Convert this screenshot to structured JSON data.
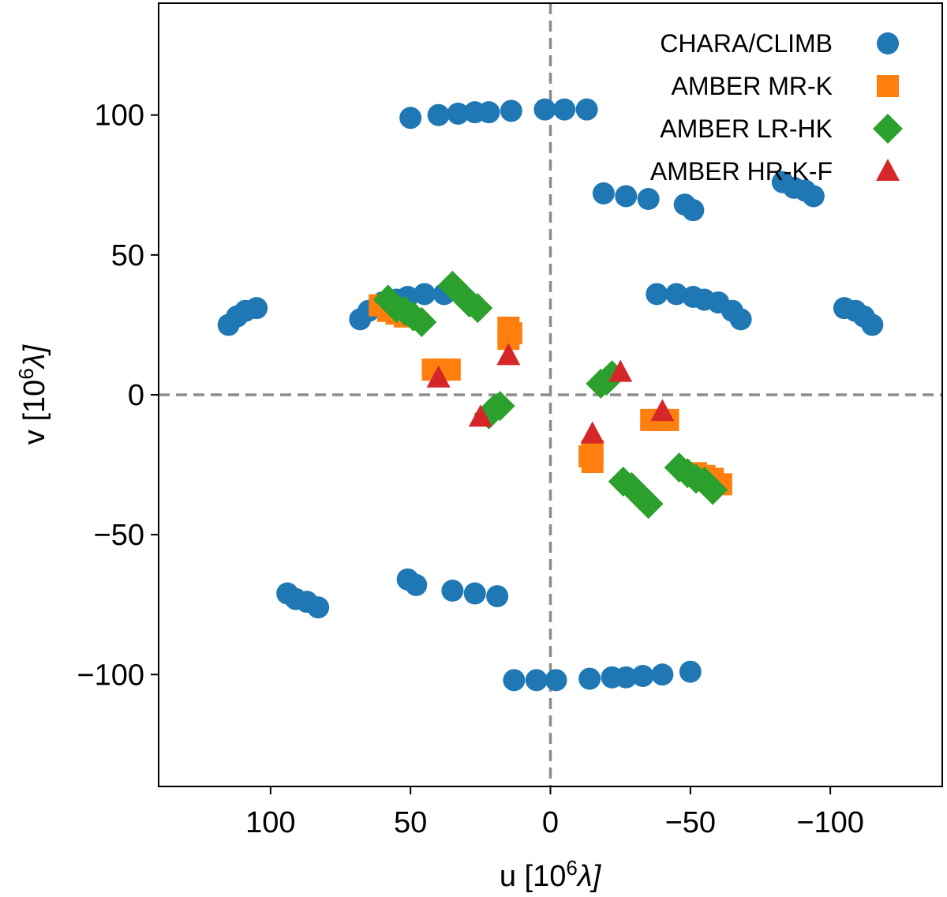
{
  "chart_data": {
    "type": "scatter",
    "title": "",
    "xlabel": "u  [10^6 λ]",
    "ylabel": "v  [10^6 λ]",
    "xlabel_parts": {
      "prefix": "u  [10",
      "exp": "6",
      "suffix": "λ]"
    },
    "ylabel_parts": {
      "prefix": "v  [10",
      "exp": "6",
      "suffix": "λ]"
    },
    "xlim": [
      140,
      -140
    ],
    "ylim": [
      -140,
      140
    ],
    "x_inverted": true,
    "xticks": [
      100,
      50,
      0,
      -50,
      -100
    ],
    "xtick_labels": [
      "100",
      "50",
      "0",
      "−50",
      "−100"
    ],
    "yticks": [
      100,
      50,
      0,
      -50,
      -100
    ],
    "ytick_labels": [
      "100",
      "50",
      "0",
      "−50",
      "−100"
    ],
    "reference_lines": {
      "x": 0,
      "y": 0,
      "style": "dashed",
      "color": "#8c8c8c"
    },
    "legend_position": "top-right",
    "series": [
      {
        "name": "CHARA/CLIMB",
        "marker": "circle",
        "color": "#1f77b4",
        "points": [
          [
            50,
            99
          ],
          [
            40,
            100
          ],
          [
            33,
            100.5
          ],
          [
            27,
            101
          ],
          [
            22,
            101
          ],
          [
            14,
            101.5
          ],
          [
            2,
            102
          ],
          [
            -5,
            102
          ],
          [
            -13,
            102
          ],
          [
            -19,
            72
          ],
          [
            -27,
            71
          ],
          [
            -35,
            70
          ],
          [
            -48,
            68
          ],
          [
            -51,
            66
          ],
          [
            -83,
            76
          ],
          [
            -87,
            74
          ],
          [
            -91,
            73
          ],
          [
            -94,
            71
          ],
          [
            115,
            25
          ],
          [
            112,
            28
          ],
          [
            109,
            30
          ],
          [
            105,
            31
          ],
          [
            68,
            27
          ],
          [
            65,
            30
          ],
          [
            60,
            33
          ],
          [
            55,
            34
          ],
          [
            51,
            35
          ],
          [
            45,
            36
          ],
          [
            38,
            36
          ],
          [
            -115,
            25
          ],
          [
            -112,
            28
          ],
          [
            -109,
            30
          ],
          [
            -105,
            31
          ],
          [
            -68,
            27
          ],
          [
            -65,
            30
          ],
          [
            -60,
            33
          ],
          [
            -55,
            34
          ],
          [
            -51,
            35
          ],
          [
            -45,
            36
          ],
          [
            -38,
            36
          ],
          [
            -50,
            -99
          ],
          [
            -40,
            -100
          ],
          [
            -33,
            -100.5
          ],
          [
            -27,
            -101
          ],
          [
            -22,
            -101
          ],
          [
            -14,
            -101.5
          ],
          [
            -2,
            -102
          ],
          [
            5,
            -102
          ],
          [
            13,
            -102
          ],
          [
            19,
            -72
          ],
          [
            27,
            -71
          ],
          [
            35,
            -70
          ],
          [
            48,
            -68
          ],
          [
            51,
            -66
          ],
          [
            83,
            -76
          ],
          [
            87,
            -74
          ],
          [
            91,
            -73
          ],
          [
            94,
            -71
          ]
        ]
      },
      {
        "name": "AMBER MR-K",
        "marker": "square",
        "color": "#ff7f0e",
        "points": [
          [
            61,
            32
          ],
          [
            58,
            30
          ],
          [
            55,
            29
          ],
          [
            52,
            28
          ],
          [
            15,
            24
          ],
          [
            14,
            22
          ],
          [
            15,
            20
          ],
          [
            42,
            9
          ],
          [
            39,
            9
          ],
          [
            36,
            9
          ],
          [
            -61,
            -32
          ],
          [
            -58,
            -30
          ],
          [
            -55,
            -29
          ],
          [
            -52,
            -28
          ],
          [
            -15,
            -24
          ],
          [
            -14,
            -22
          ],
          [
            -15,
            -20
          ],
          [
            -42,
            -9
          ],
          [
            -39,
            -9
          ],
          [
            -36,
            -9
          ]
        ]
      },
      {
        "name": "AMBER LR-HK",
        "marker": "diamond",
        "color": "#2ca02c",
        "points": [
          [
            58,
            34
          ],
          [
            55,
            31
          ],
          [
            52,
            30
          ],
          [
            49,
            28
          ],
          [
            46,
            26
          ],
          [
            35,
            39
          ],
          [
            32,
            36
          ],
          [
            29,
            33
          ],
          [
            26,
            31
          ],
          [
            18,
            -4
          ],
          [
            20,
            -5
          ],
          [
            22,
            -7
          ],
          [
            -58,
            -34
          ],
          [
            -55,
            -31
          ],
          [
            -52,
            -30
          ],
          [
            -49,
            -28
          ],
          [
            -46,
            -26
          ],
          [
            -35,
            -39
          ],
          [
            -32,
            -36
          ],
          [
            -29,
            -33
          ],
          [
            -26,
            -31
          ],
          [
            -18,
            4
          ],
          [
            -20,
            5
          ],
          [
            -22,
            7
          ]
        ]
      },
      {
        "name": "AMBER HR-K-F",
        "marker": "triangle",
        "color": "#d62728",
        "points": [
          [
            40,
            6
          ],
          [
            15,
            14
          ],
          [
            25,
            -8
          ],
          [
            -40,
            -6
          ],
          [
            -15,
            -14
          ],
          [
            -25,
            8
          ]
        ]
      }
    ]
  }
}
